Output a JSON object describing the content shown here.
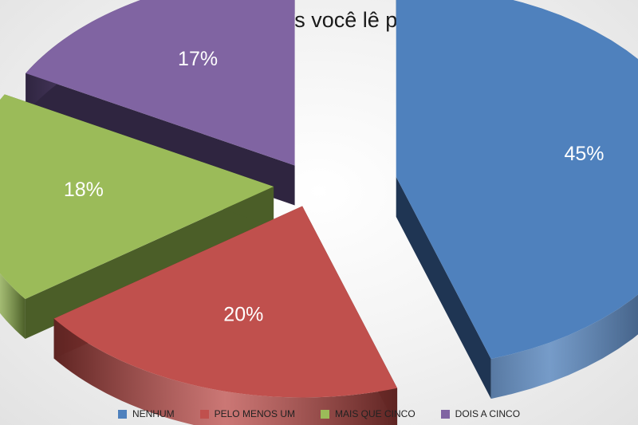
{
  "chart_data": {
    "type": "pie",
    "title": "Quantos livros você lê por ano?",
    "categories": [
      "NENHUM",
      "PELO MENOS UM",
      "MAIS QUE CINCO",
      "DOIS A CINCO"
    ],
    "values": [
      45,
      20,
      18,
      17
    ],
    "value_labels": [
      "45%",
      "20%",
      "18%",
      "17%"
    ],
    "colors": [
      "#4f81bd",
      "#c0504d",
      "#9bbb59",
      "#8064a2"
    ],
    "side_colors": [
      "#1f3553",
      "#5e2422",
      "#4b5e28",
      "#2f2540"
    ],
    "exploded": true,
    "three_d": true,
    "legend_position": "bottom"
  }
}
